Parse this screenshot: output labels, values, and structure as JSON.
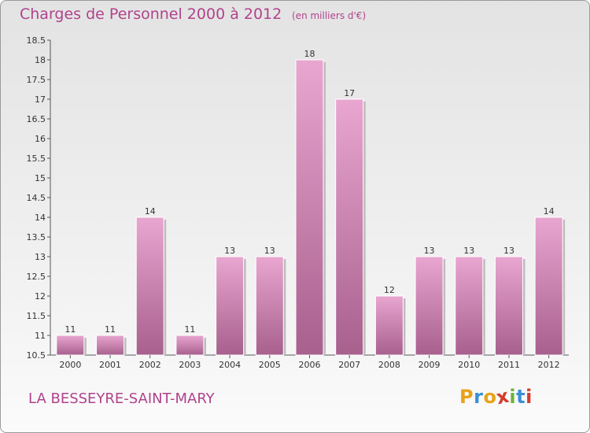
{
  "header": {
    "title": "Charges de Personnel 2000 à 2012",
    "subtitle": "(en milliers d'€)"
  },
  "footer": {
    "commune": "LA BESSEYRE-SAINT-MARY",
    "logo": [
      "P",
      "r",
      "o",
      "x",
      "i",
      "t",
      "i"
    ]
  },
  "colors": {
    "title": "#b0438c",
    "bar_top": "#e8a6d0",
    "bar_bottom": "#a8608d",
    "logo": [
      "#e8a21a",
      "#3a8fd6",
      "#e8a21a",
      "#d43c2c",
      "#6bb33a",
      "#3a8fd6",
      "#d43c2c"
    ]
  },
  "chart_data": {
    "type": "bar",
    "categories": [
      "2000",
      "2001",
      "2002",
      "2003",
      "2004",
      "2005",
      "2006",
      "2007",
      "2008",
      "2009",
      "2010",
      "2011",
      "2012"
    ],
    "values": [
      11,
      11,
      14,
      11,
      13,
      13,
      18,
      17,
      12,
      13,
      13,
      13,
      14
    ],
    "data_labels": [
      "11",
      "11",
      "14",
      "11",
      "13",
      "13",
      "18",
      "17",
      "12",
      "13",
      "13",
      "13",
      "14"
    ],
    "ylim": [
      10.5,
      18.5
    ],
    "yticks": [
      "10.5",
      "11",
      "11.5",
      "12",
      "12.5",
      "13",
      "13.5",
      "14",
      "14.5",
      "15",
      "15.5",
      "16",
      "16.5",
      "17",
      "17.5",
      "18",
      "18.5"
    ],
    "grid": false,
    "legend": "none"
  }
}
